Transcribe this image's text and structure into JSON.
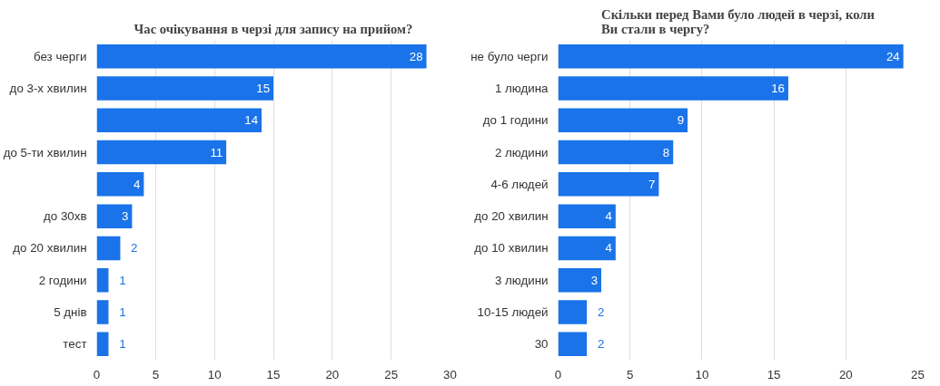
{
  "chart_data": [
    {
      "type": "bar",
      "orientation": "horizontal",
      "title": "Час очікування в черзі для запису на прийом?",
      "categories": [
        "без черги",
        "до 3-х хвилин",
        null,
        "до 5-ти хвилин",
        null,
        "до 30хв",
        "до 20 хвилин",
        "2 години",
        "5 днів",
        "тест"
      ],
      "values": [
        28,
        15,
        14,
        11,
        4,
        3,
        2,
        1,
        1,
        1
      ],
      "color": "#1a73e8",
      "xlim": [
        0,
        30
      ],
      "xticks": [
        0,
        5,
        10,
        15,
        20,
        25,
        30
      ],
      "grid": "x",
      "data_labels": true
    },
    {
      "type": "bar",
      "orientation": "horizontal",
      "title": "Скільки перед Вами було людей в черзі, коли Ви стали в чергу?",
      "categories": [
        "не було черги",
        "1 людина",
        "до 1 години",
        "2 людини",
        "4-6 людей",
        "до 20 хвилин",
        "до 10 хвилин",
        "3 людини",
        "10-15 людей",
        "30"
      ],
      "values": [
        24,
        16,
        9,
        8,
        7,
        4,
        4,
        3,
        2,
        2
      ],
      "color": "#1a73e8",
      "xlim": [
        0,
        25
      ],
      "xticks": [
        0,
        5,
        10,
        15,
        20,
        25
      ],
      "grid": "x",
      "data_labels": true
    }
  ]
}
